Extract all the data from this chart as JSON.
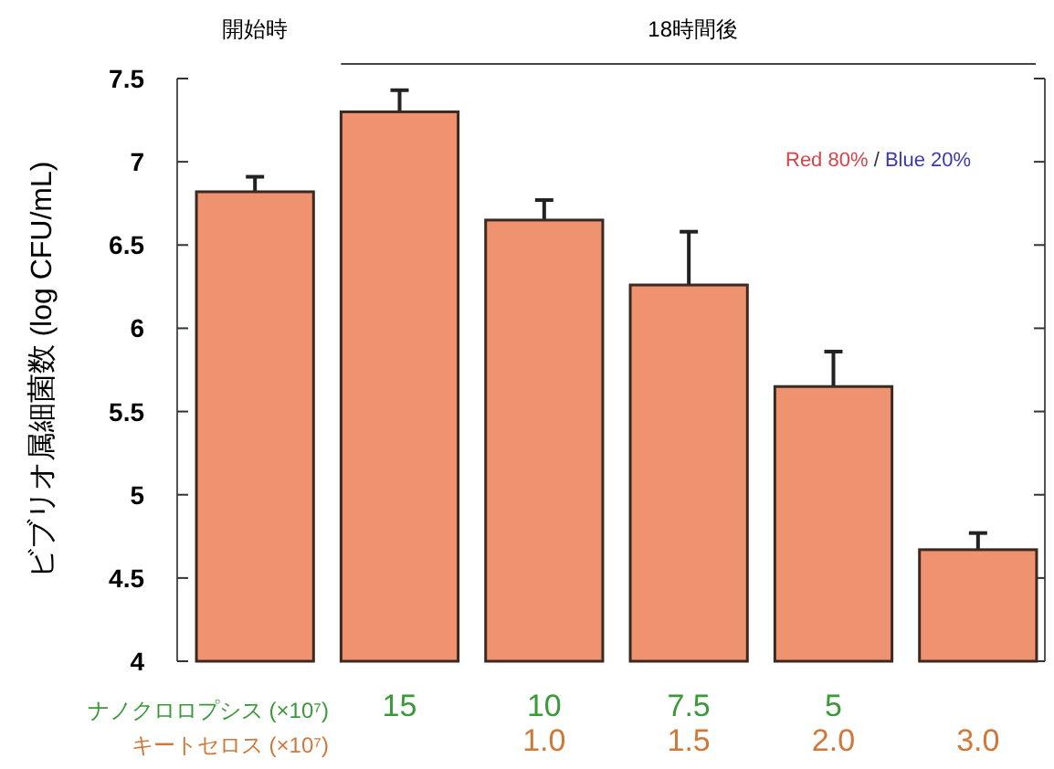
{
  "chart_data": {
    "type": "bar",
    "ylabel": "ビブリオ属細菌数 (log CFU/mL)",
    "categories": [
      null,
      "15\n",
      "10\n1.0",
      "7.5\n1.5",
      "5\n2.0",
      "\n3.0"
    ],
    "values": [
      6.82,
      7.3,
      6.65,
      6.26,
      5.65,
      4.67
    ],
    "errors": [
      0.09,
      0.13,
      0.12,
      0.32,
      0.21,
      0.1
    ],
    "color": "#ee9270",
    "ylim": [
      4,
      7.5
    ],
    "yticks": [
      4,
      4.5,
      5,
      5.5,
      6,
      6.5,
      7,
      7.5
    ],
    "annotations": [
      "開始時",
      "18時間後",
      "Red 80%",
      "/",
      "Blue 20%",
      "ナノクロロプシス (×10⁷)",
      "キートセロス (×10⁷)"
    ]
  }
}
